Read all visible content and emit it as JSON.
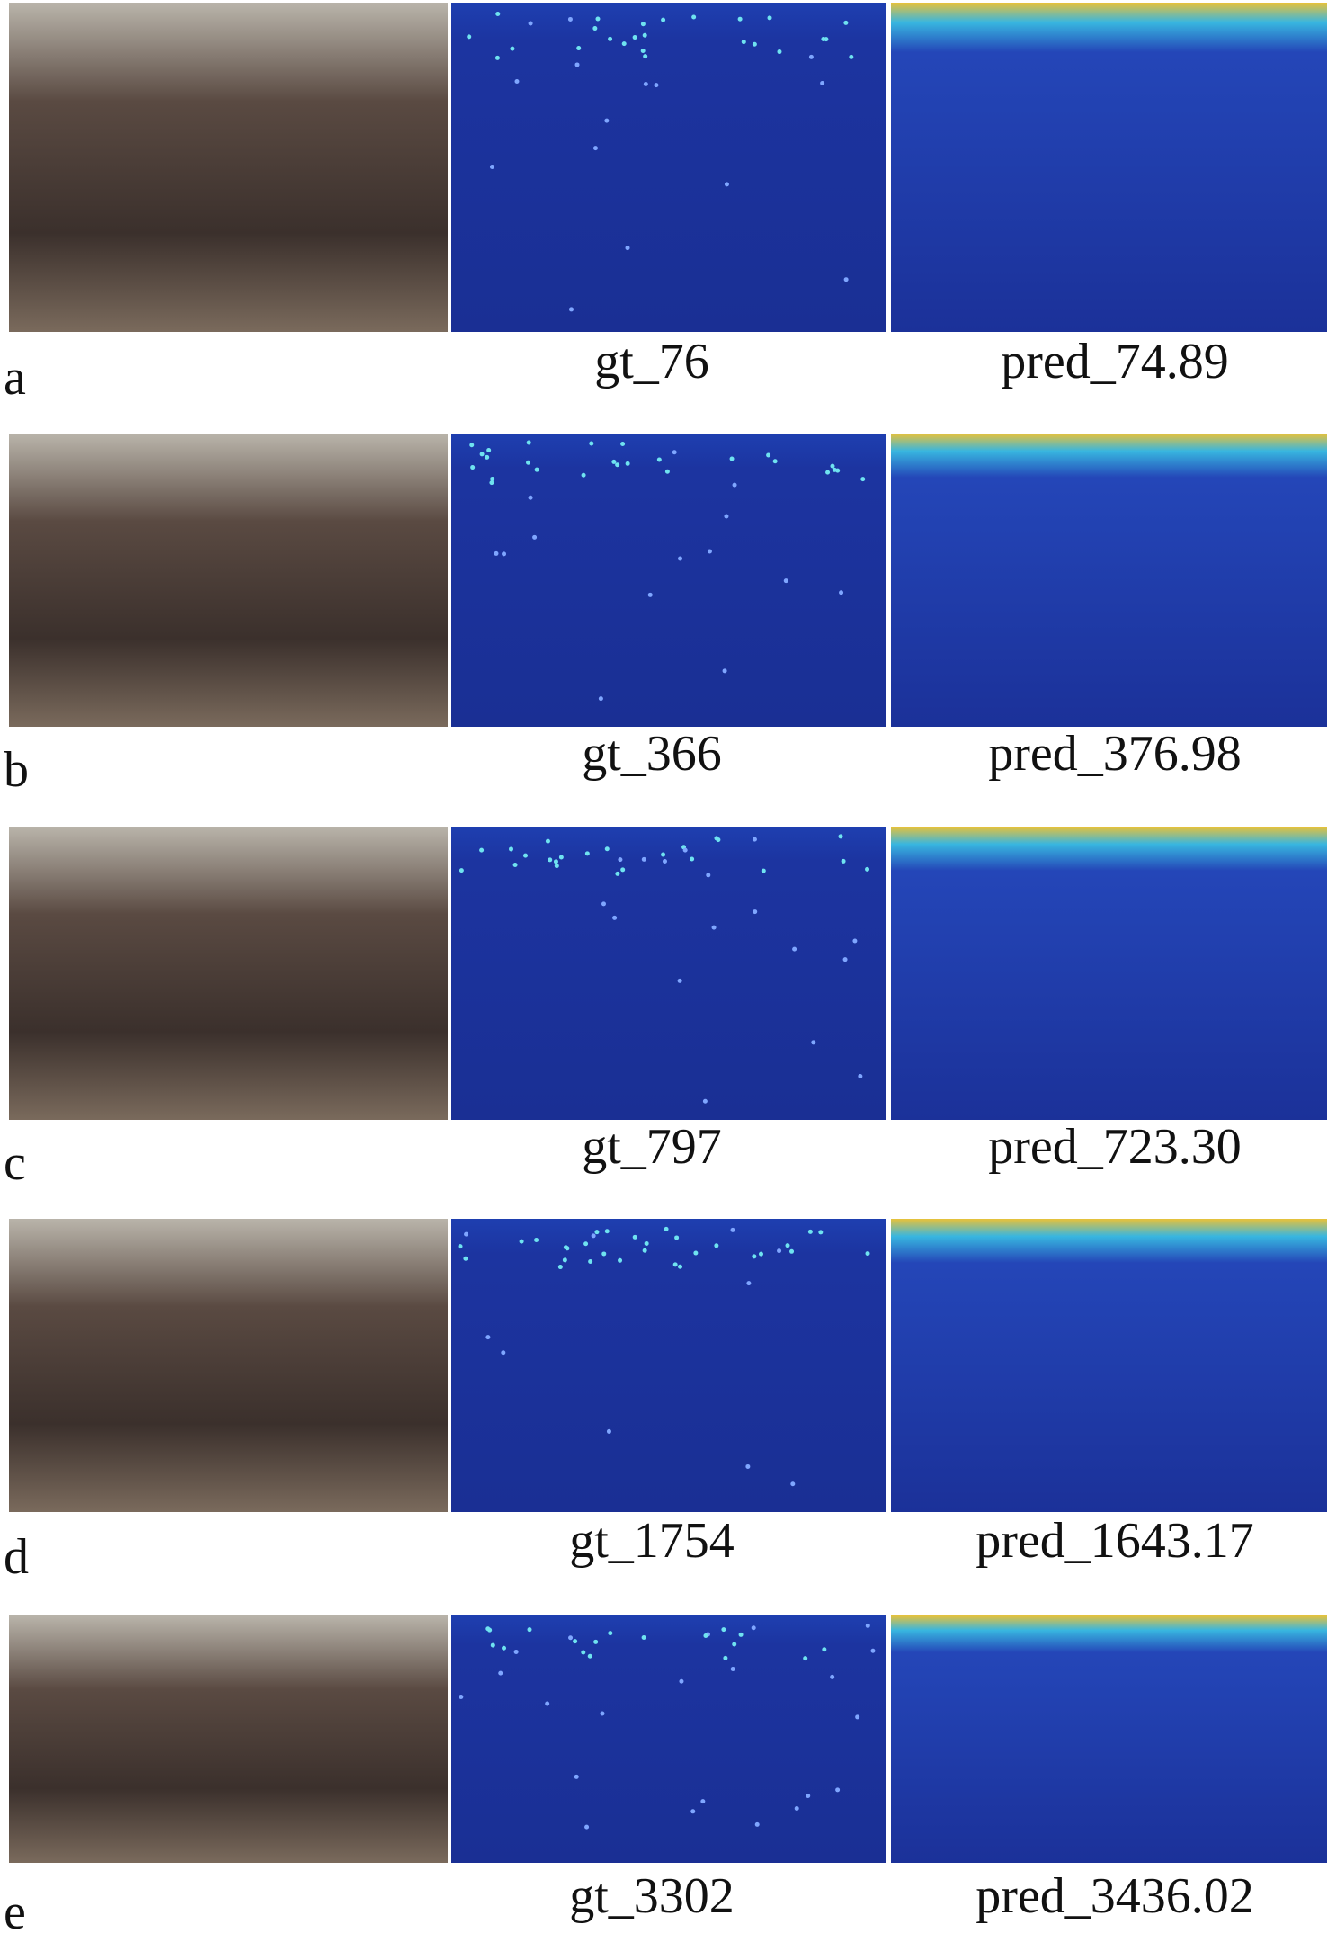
{
  "rows": [
    {
      "label": "a",
      "gt": "gt_76",
      "pred": "pred_74.89"
    },
    {
      "label": "b",
      "gt": "gt_366",
      "pred": "pred_376.98"
    },
    {
      "label": "c",
      "gt": "gt_797",
      "pred": "pred_723.30"
    },
    {
      "label": "d",
      "gt": "gt_1754",
      "pred": "pred_1643.17"
    },
    {
      "label": "e",
      "gt": "gt_3302",
      "pred": "pred_3436.02"
    }
  ]
}
